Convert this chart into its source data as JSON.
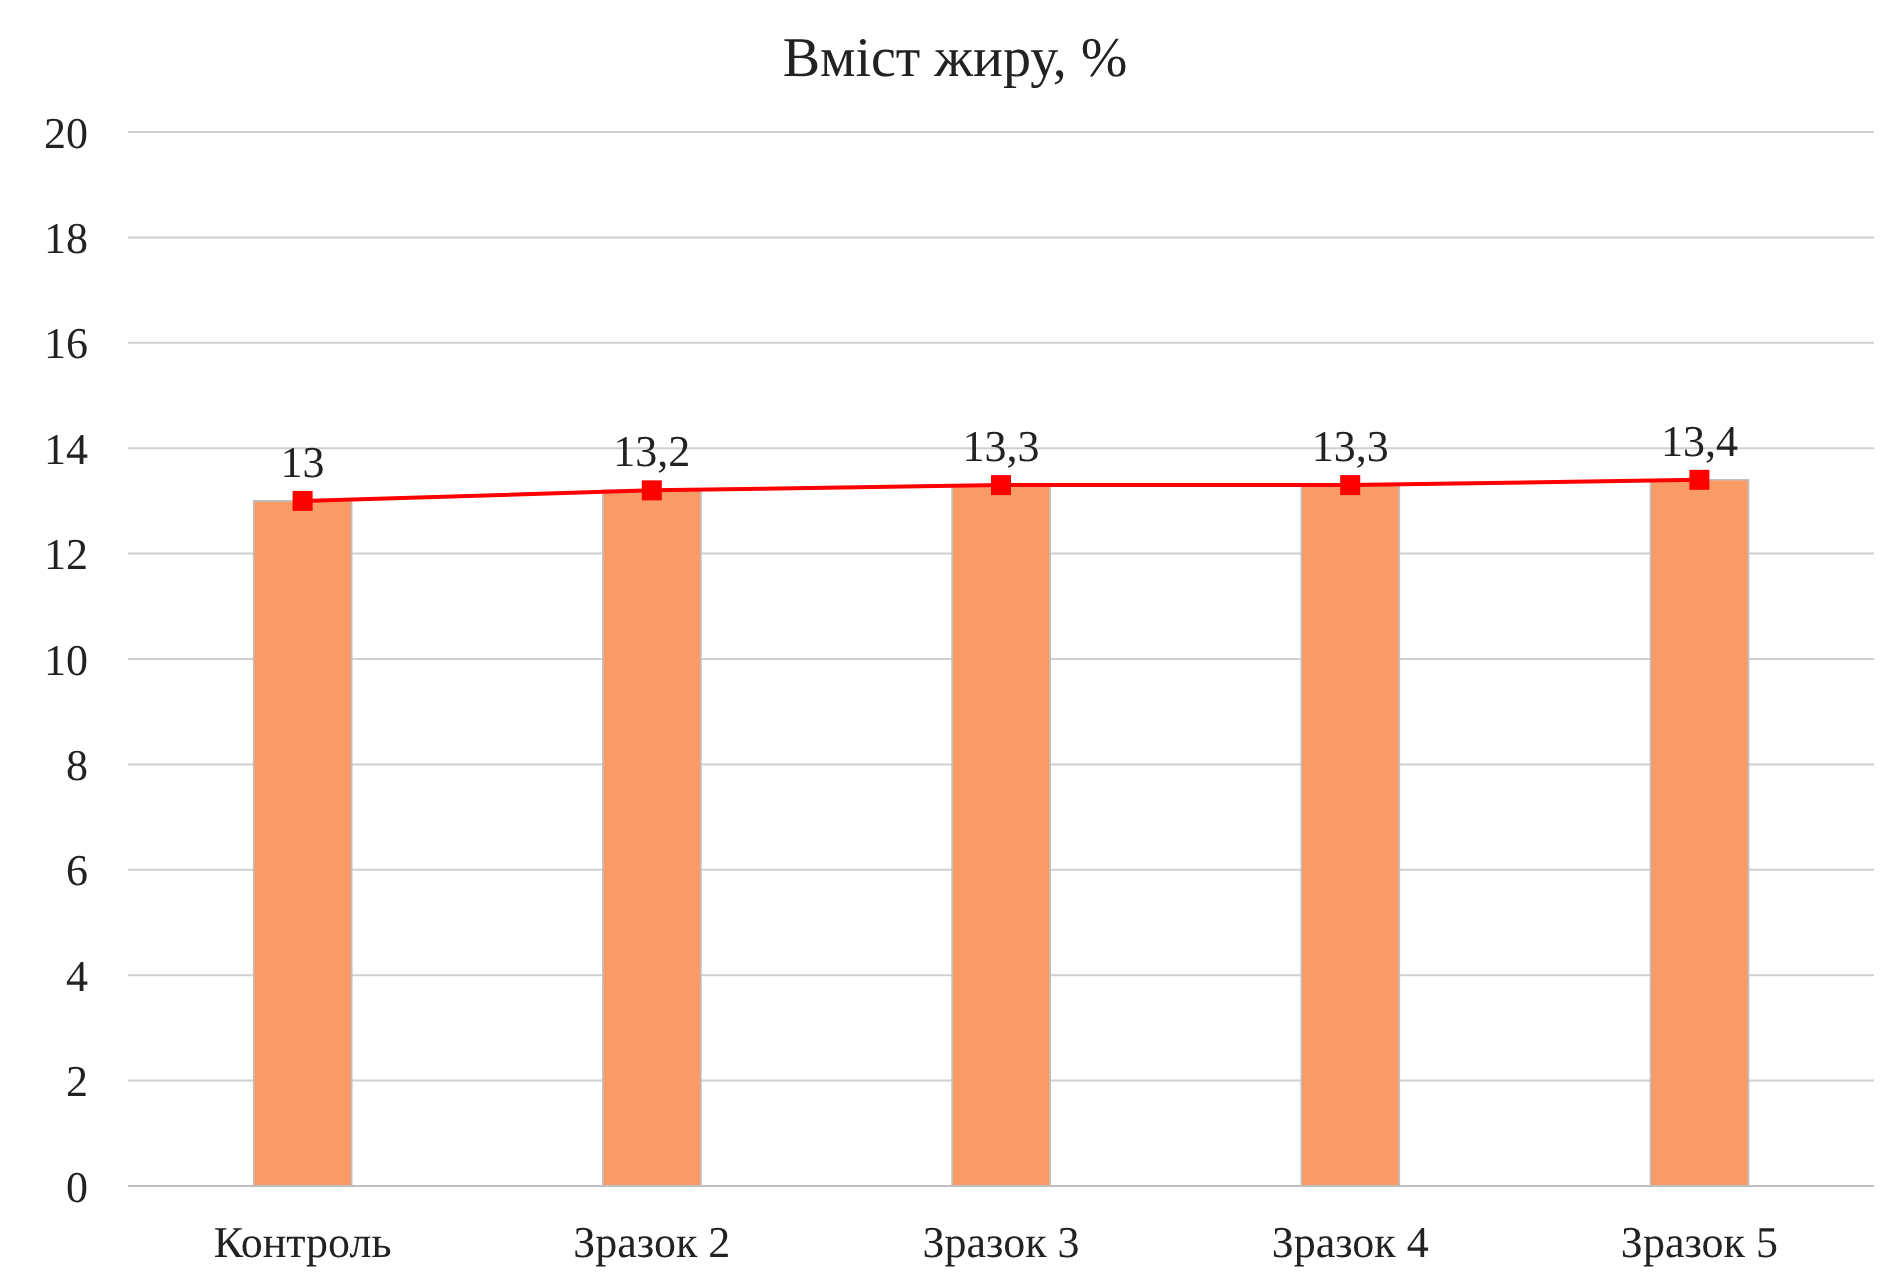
{
  "chart_data": {
    "type": "bar",
    "title": "Вміст жиру, %",
    "categories": [
      "Контроль",
      "Зразок 2",
      "Зразок 3",
      "Зразок 4",
      "Зразок 5"
    ],
    "series": [
      {
        "color": "#f99b67",
        "values": [
          13,
          13.2,
          13.3,
          13.3,
          13.4
        ]
      },
      {
        "type": "line",
        "color": "#ff0000",
        "values": [
          13,
          13.2,
          13.3,
          13.3,
          13.4
        ],
        "value_labels": [
          "13",
          "13,2",
          "13,3",
          "13,3",
          "13,4"
        ]
      }
    ],
    "marker": "square",
    "line_style": "solid",
    "ylim": [
      0,
      20
    ],
    "yticks": [
      0,
      2,
      4,
      6,
      8,
      10,
      12,
      14,
      16,
      18,
      20
    ],
    "grid": "y",
    "legend": false
  }
}
